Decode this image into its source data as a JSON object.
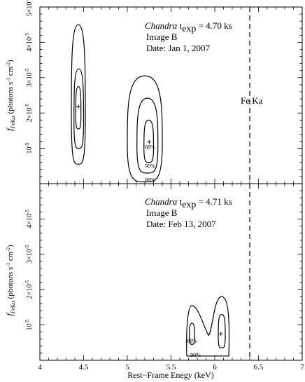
{
  "chart_data": [
    {
      "type": "contour",
      "annotation": {
        "prefix": "Chandra",
        "texp_label": "t",
        "texp_sub": "exp",
        "texp_value": " = 4.70 ks",
        "line2": "Image B",
        "line3": "Date: Jan 1, 2007"
      },
      "line_label": "Fe Ka",
      "line_energy": 6.4,
      "xlim": [
        4,
        7
      ],
      "ylim": [
        0,
        5e-05
      ],
      "yticks": [
        {
          "v": 1e-05,
          "base": "10",
          "exp": "-5"
        },
        {
          "v": 2e-05,
          "base": "2×10",
          "exp": "-5"
        },
        {
          "v": 3e-05,
          "base": "3×10",
          "exp": "-5"
        },
        {
          "v": 4e-05,
          "base": "4×10",
          "exp": "-5"
        },
        {
          "v": 5e-05,
          "base": "5×10",
          "exp": "-5"
        }
      ],
      "best_fits": [
        {
          "x": 4.44,
          "y": 2.18e-05
        },
        {
          "x": 5.25,
          "y": 1.18e-05
        }
      ],
      "contours": [
        {
          "level": "68%",
          "islands": [
            {
              "x0": 4.41,
              "x1": 4.47,
              "y0": 1.55e-05,
              "y1": 2.75e-05
            },
            {
              "x0": 5.19,
              "x1": 5.3,
              "y0": 6e-06,
              "y1": 1.8e-05
            }
          ]
        },
        {
          "level": "90%",
          "islands": [
            {
              "x0": 4.39,
              "x1": 4.5,
              "y0": 1e-05,
              "y1": 3.25e-05
            },
            {
              "x0": 5.11,
              "x1": 5.35,
              "y0": 3e-06,
              "y1": 2.42e-05
            }
          ]
        },
        {
          "level": "99%",
          "islands": [
            {
              "x0": 4.36,
              "x1": 4.52,
              "y0": 5.5e-06,
              "y1": 4.5e-05
            },
            {
              "x0": 5.0,
              "x1": 5.4,
              "y0": 5e-07,
              "y1": 3.05e-05
            }
          ]
        }
      ],
      "contour_labels": [
        {
          "text": "68%",
          "x": 5.26,
          "y": 9.8e-06
        },
        {
          "text": "90%",
          "x": 5.26,
          "y": 4.5e-06
        },
        {
          "text": "99%",
          "x": 5.26,
          "y": 5e-07
        }
      ]
    },
    {
      "type": "contour",
      "annotation": {
        "prefix": "Chandra",
        "texp_label": "t",
        "texp_sub": "exp",
        "texp_value": " = 4.71 ks",
        "line2": "Image B",
        "line3": "Date: Feb 13, 2007"
      },
      "line_energy": 6.4,
      "xlim": [
        4,
        7
      ],
      "ylim": [
        0,
        5e-05
      ],
      "yticks": [
        {
          "v": 1e-05,
          "base": "10",
          "exp": "-5"
        },
        {
          "v": 2e-05,
          "base": "2×10",
          "exp": "-5"
        },
        {
          "v": 3e-05,
          "base": "3×10",
          "exp": "-5"
        },
        {
          "v": 4e-05,
          "base": "4×10",
          "exp": "-5"
        }
      ],
      "best_fits": [
        {
          "x": 6.07,
          "y": 7.5e-06
        }
      ],
      "contours": [
        {
          "level": "68%",
          "islands": [
            {
              "x0": 5.71,
              "x1": 5.77,
              "y0": 4.5e-06,
              "y1": 1.05e-05
            },
            {
              "x0": 6.04,
              "x1": 6.12,
              "y0": 3.5e-06,
              "y1": 1.3e-05
            }
          ]
        },
        {
          "level": "90%",
          "bridge": {
            "x": 5.93,
            "y": 7e-06
          },
          "islands": [
            {
              "x0": 5.68,
              "x1": 5.8,
              "y0": 1.2e-06,
              "y1": 1.55e-05
            },
            {
              "x0": 6.0,
              "x1": 6.16,
              "y0": 1.2e-06,
              "y1": 1.8e-05
            }
          ]
        }
      ],
      "contour_labels": [
        {
          "text": "68%",
          "x": 5.74,
          "y": 5e-06
        },
        {
          "text": "90%",
          "x": 5.78,
          "y": 1e-06
        }
      ]
    }
  ],
  "ylabel": {
    "f": "f",
    "sub": "FeK",
    "alpha": "α",
    "units": " (photons s",
    "units_exp": "-1",
    "units_cm": " cm",
    "units_exp2": "-2",
    "units_end": ")"
  },
  "xlabel": "Rest−Frame Enegy (keV)",
  "xticks": [
    {
      "v": 4,
      "label": "4"
    },
    {
      "v": 4.5,
      "label": "4.5"
    },
    {
      "v": 5,
      "label": "5"
    },
    {
      "v": 5.5,
      "label": "5.5"
    },
    {
      "v": 6,
      "label": "6"
    },
    {
      "v": 6.5,
      "label": "6.5"
    },
    {
      "v": 7,
      "label": "7"
    }
  ]
}
